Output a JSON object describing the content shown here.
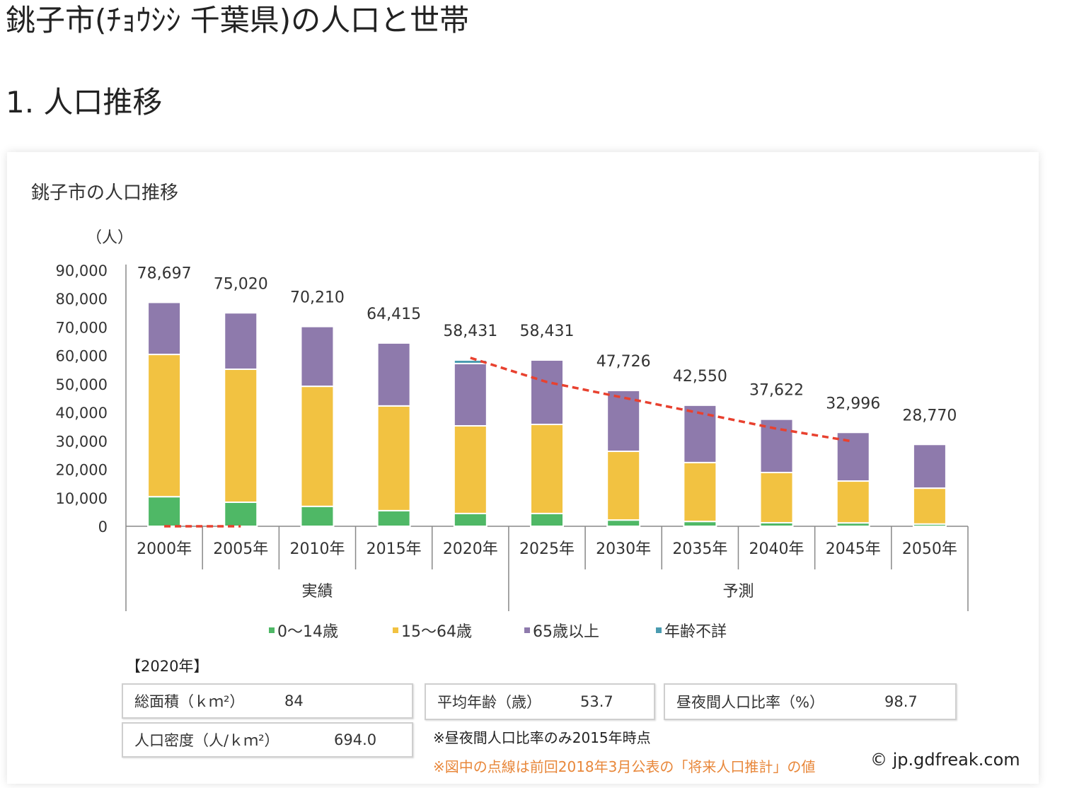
{
  "page": {
    "title": "銚子市(ﾁｮｳｼｼ 千葉県)の人口と世帯",
    "section": "1. 人口推移"
  },
  "chart_data": {
    "type": "bar",
    "stacked": true,
    "title": "銚子市の人口推移",
    "ylabel": "（人）",
    "ylim": [
      0,
      90000
    ],
    "yticks": [
      "0",
      "10,000",
      "20,000",
      "30,000",
      "40,000",
      "50,000",
      "60,000",
      "70,000",
      "80,000",
      "90,000"
    ],
    "categories": [
      "2000年",
      "2005年",
      "2010年",
      "2015年",
      "2020年",
      "2025年",
      "2030年",
      "2035年",
      "2040年",
      "2045年",
      "2050年"
    ],
    "groups": [
      {
        "label": "実績",
        "from": 0,
        "to": 4
      },
      {
        "label": "予測",
        "from": 5,
        "to": 10
      }
    ],
    "totals": [
      "78,697",
      "75,020",
      "70,210",
      "64,415",
      "58,431",
      "58,431",
      "47,726",
      "42,550",
      "37,622",
      "32,996",
      "28,770"
    ],
    "series": [
      {
        "name": "0〜14歳",
        "color": "#4fb866",
        "values": [
          10400,
          8450,
          7000,
          5500,
          4500,
          4500,
          2200,
          1700,
          1250,
          1200,
          800
        ]
      },
      {
        "name": "15〜64歳",
        "color": "#f2c241",
        "values": [
          50000,
          46750,
          42200,
          36800,
          30800,
          31300,
          24150,
          20700,
          17650,
          14700,
          12600
        ]
      },
      {
        "name": "65歳以上",
        "color": "#8e7aac",
        "values": [
          18297,
          19820,
          21010,
          22115,
          21900,
          22631,
          21376,
          20150,
          18722,
          17096,
          15370
        ]
      },
      {
        "name": "年齢不詳",
        "color": "#4a9bb0",
        "values": [
          0,
          0,
          0,
          0,
          1231,
          0,
          0,
          0,
          0,
          0,
          0
        ]
      }
    ],
    "previous_projection": {
      "color": "#e8412f",
      "values": [
        0,
        0,
        null,
        null,
        59200,
        50700,
        45200,
        39800,
        34300,
        29800,
        null
      ]
    },
    "legend": "bottom"
  },
  "stats": {
    "year_label": "【2020年】",
    "area_label": "総面積（ｋｍ²）",
    "area_value": "84",
    "density_label": "人口密度（人/ｋｍ²）",
    "density_value": "694.0",
    "age_label": "平均年齢（歳）",
    "age_value": "53.7",
    "ratio_label": "昼夜間人口比率（%）",
    "ratio_value": "98.7",
    "note1": "※昼夜間人口比率のみ2015年時点",
    "note2": "※図中の点線は前回2018年3月公表の「将来人口推計」の値",
    "copyright": "© jp.gdfreak.com"
  }
}
